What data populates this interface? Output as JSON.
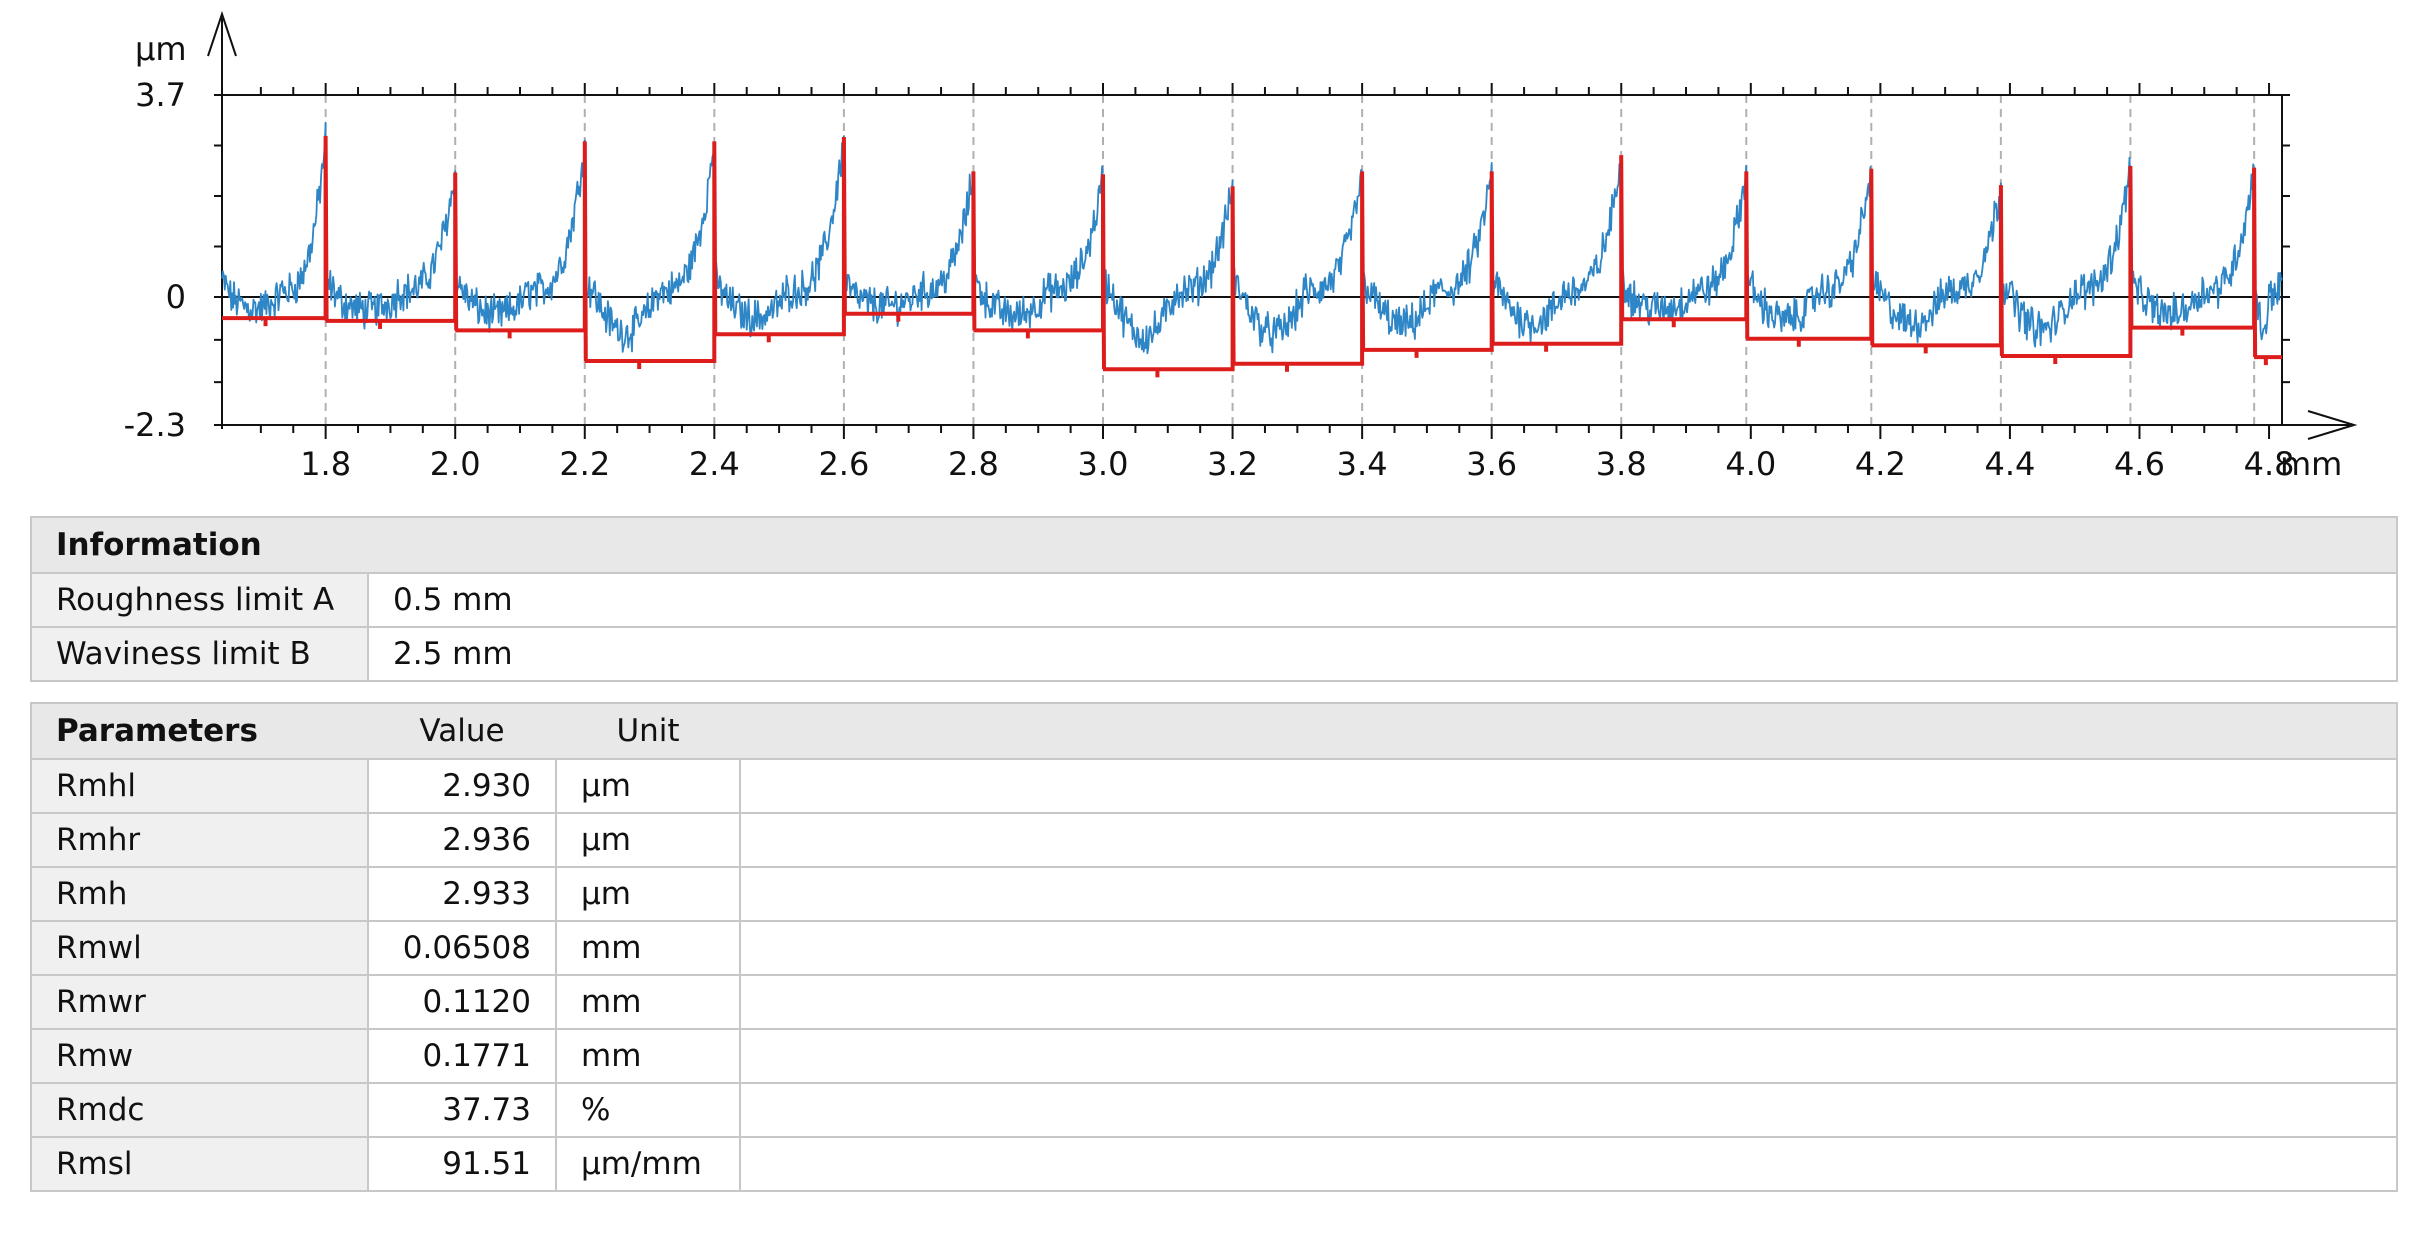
{
  "chart_data": {
    "type": "line",
    "xlabel": "",
    "ylabel": "",
    "x_unit": "mm",
    "y_unit": "µm",
    "xlim": [
      1.64,
      4.82
    ],
    "ylim": [
      -2.3,
      3.7
    ],
    "x_ticks": [
      "1.8",
      "2.0",
      "2.2",
      "2.4",
      "2.6",
      "2.8",
      "3.0",
      "3.2",
      "3.4",
      "3.6",
      "3.8",
      "4.0",
      "4.2",
      "4.4",
      "4.6",
      "4.8"
    ],
    "y_ticks": [
      "3.7",
      "0",
      "-2.3"
    ],
    "grid": "vertical dashed at element boundaries",
    "colors": {
      "profile": "#2f86c6",
      "elements": "#dd1c1c",
      "axis": "#111111",
      "grid": "#b0b0b0"
    },
    "boundaries": [
      1.64,
      1.8,
      2.0,
      2.2,
      2.4,
      2.6,
      2.8,
      3.0,
      3.2,
      3.4,
      3.6,
      3.8,
      3.993,
      4.186,
      4.386,
      4.586,
      4.777,
      4.82
    ],
    "element_peaks": [
      2.95,
      2.28,
      2.85,
      2.85,
      2.93,
      2.3,
      2.25,
      2.03,
      2.3,
      2.3,
      2.6,
      2.3,
      2.35,
      2.05,
      2.4,
      2.37
    ],
    "element_valleys": [
      -0.38,
      -0.43,
      -0.6,
      -1.15,
      -0.67,
      -0.3,
      -0.6,
      -1.3,
      -1.2,
      -0.95,
      -0.84,
      -0.4,
      -0.75,
      -0.87,
      -1.06,
      -0.55,
      -1.08
    ],
    "series": [
      {
        "name": "",
        "values": []
      },
      {
        "name": "",
        "values": []
      }
    ]
  },
  "info": {
    "title": "Information",
    "rows": [
      {
        "name": "Roughness limit A",
        "value": "0.5 mm"
      },
      {
        "name": "Waviness limit B",
        "value": "2.5 mm"
      }
    ]
  },
  "params": {
    "title": "Parameters",
    "col_value": "Value",
    "col_unit": "Unit",
    "rows": [
      {
        "name": "Rmhl",
        "value": "2.930",
        "unit": "µm"
      },
      {
        "name": "Rmhr",
        "value": "2.936",
        "unit": "µm"
      },
      {
        "name": "Rmh",
        "value": "2.933",
        "unit": "µm"
      },
      {
        "name": "Rmwl",
        "value": "0.06508",
        "unit": "mm"
      },
      {
        "name": "Rmwr",
        "value": "0.1120",
        "unit": "mm"
      },
      {
        "name": "Rmw",
        "value": "0.1771",
        "unit": "mm"
      },
      {
        "name": "Rmdc",
        "value": "37.73",
        "unit": "%"
      },
      {
        "name": "Rmsl",
        "value": "91.51",
        "unit": "µm/mm"
      }
    ]
  }
}
